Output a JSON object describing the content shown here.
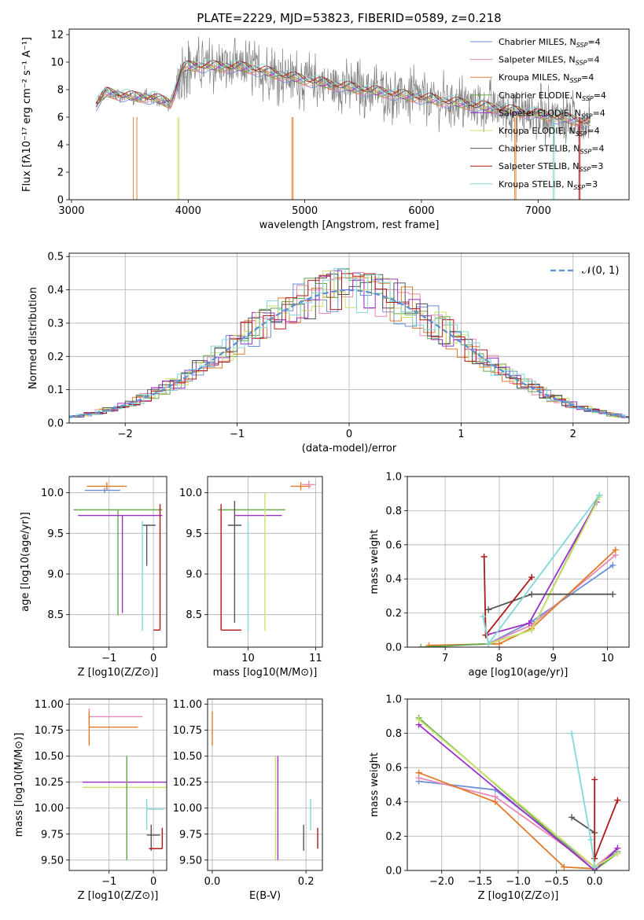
{
  "chart_data": [
    {
      "id": "spectrum",
      "type": "line",
      "title": "PLATE=2229, MJD=53823, FIBERID=0589, z=0.218",
      "xlabel": "wavelength [Angstrom, rest frame]",
      "ylabel": "Flux [fλ10⁻¹⁷ erg cm⁻² s⁻¹ A⁻¹]",
      "xlim": [
        2980,
        7780
      ],
      "ylim": [
        0,
        12.4
      ],
      "xticks": [
        3000,
        4000,
        5000,
        6000,
        7000
      ],
      "yticks": [
        0,
        2,
        4,
        6,
        8,
        10,
        12
      ],
      "grid": false,
      "legend_position": "top-right",
      "continuum": {
        "x": [
          3210,
          3300,
          3500,
          3700,
          3850,
          3950,
          4000,
          4200,
          4500,
          5000,
          5500,
          6000,
          6500,
          7000,
          7300,
          7450
        ],
        "y": [
          6.9,
          7.8,
          7.5,
          7.4,
          7.0,
          9.5,
          9.7,
          9.7,
          9.6,
          8.7,
          8.0,
          7.4,
          6.8,
          6.2,
          5.8,
          5.6
        ]
      },
      "series": [
        {
          "name": "Chabrier MILES, N",
          "sub": "SSP",
          "suffix": "=4",
          "color": "#6b8fd6"
        },
        {
          "name": "Salpeter MILES, N",
          "sub": "SSP",
          "suffix": "=4",
          "color": "#e68ab8"
        },
        {
          "name": "Kroupa MILES, N",
          "sub": "SSP",
          "suffix": "=4",
          "color": "#e07b2a"
        },
        {
          "name": "Chabrier ELODIE, N",
          "sub": "SSP",
          "suffix": "=4",
          "color": "#6aa84f"
        },
        {
          "name": "Salpeter ELODIE, N",
          "sub": "SSP",
          "suffix": "=4",
          "color": "#9b30c8"
        },
        {
          "name": "Kroupa ELODIE, N",
          "sub": "SSP",
          "suffix": "=4",
          "color": "#c8e26a"
        },
        {
          "name": "Chabrier STELIB, N",
          "sub": "SSP",
          "suffix": "=4",
          "color": "#555555"
        },
        {
          "name": "Salpeter STELIB, N",
          "sub": "SSP",
          "suffix": "=3",
          "color": "#b01818"
        },
        {
          "name": "Kroupa STELIB, N",
          "sub": "SSP",
          "suffix": "=3",
          "color": "#80d8d8"
        }
      ]
    },
    {
      "id": "residuals",
      "type": "line",
      "xlabel": "(data-model)/error",
      "ylabel": "Normed distribution",
      "xlim": [
        -2.5,
        2.5
      ],
      "ylim": [
        0,
        0.51
      ],
      "xticks": [
        -2,
        -1,
        0,
        1,
        2
      ],
      "yticks": [
        0.0,
        0.1,
        0.2,
        0.3,
        0.4,
        0.5
      ],
      "grid": true,
      "legend_position": "top-right",
      "legend_label": "𝒩(0, 1)",
      "bin_width": 0.1,
      "gaussian": {
        "mean": 0,
        "sigma": 1,
        "color": "#5b8fd6"
      }
    },
    {
      "id": "age-vs-Z",
      "type": "scatter",
      "xlabel": "Z [log10(Z/Z⊙)]",
      "ylabel": "age  [log10(age/yr)]",
      "xlim": [
        -1.9,
        0.3
      ],
      "ylim": [
        8.1,
        10.2
      ],
      "xticks": [
        -1,
        0
      ],
      "yticks": [
        8.5,
        9.0,
        9.5,
        10.0
      ],
      "grid": true,
      "points": [
        {
          "x": -1.05,
          "y": 10.08,
          "xerr": [
            0.45,
            0.45
          ],
          "yerr": [
            0.05,
            0.05
          ],
          "color": "#e07b2a"
        },
        {
          "x": -1.1,
          "y": 10.03,
          "xerr": [
            0.45,
            0.35
          ],
          "yerr": [
            0.03,
            0.03
          ],
          "color": "#6b8fd6"
        },
        {
          "x": -0.8,
          "y": 9.79,
          "xerr": [
            1.0,
            1.0
          ],
          "yerr": [
            1.3,
            0
          ],
          "color": "#6aa84f"
        },
        {
          "x": -0.7,
          "y": 9.72,
          "xerr": [
            1.0,
            0.9
          ],
          "yerr": [
            1.2,
            0
          ],
          "color": "#9b30c8"
        },
        {
          "x": -0.15,
          "y": 9.6,
          "xerr": [
            0.1,
            0.2
          ],
          "yerr": [
            0.5,
            0
          ],
          "color": "#555555"
        },
        {
          "x": 0.15,
          "y": 8.31,
          "xerr": [
            0.15,
            0.0
          ],
          "yerr": [
            0,
            1.55
          ],
          "color": "#b01818"
        },
        {
          "x": -0.25,
          "y": 9.65,
          "xerr": [
            0,
            0
          ],
          "yerr": [
            1.35,
            0
          ],
          "color": "#80d8d8"
        }
      ]
    },
    {
      "id": "age-vs-mass",
      "type": "scatter",
      "xlabel": "mass [log10(M/M⊙)]",
      "ylabel": "",
      "xlim": [
        9.4,
        11.1
      ],
      "ylim": [
        8.1,
        10.2
      ],
      "xticks": [
        10,
        11
      ],
      "yticks": [
        8.5,
        9.0,
        9.5,
        10.0
      ],
      "grid": true,
      "points": [
        {
          "x": 10.78,
          "y": 10.08,
          "xerr": [
            0.15,
            0.15
          ],
          "yerr": [
            0.05,
            0.05
          ],
          "color": "#e07b2a"
        },
        {
          "x": 10.9,
          "y": 10.1,
          "xerr": [
            0.1,
            0.1
          ],
          "yerr": [
            0.05,
            0.05
          ],
          "color": "#e68ab8"
        },
        {
          "x": 10.0,
          "y": 9.79,
          "xerr": [
            0.45,
            0.55
          ],
          "yerr": [
            0,
            0
          ],
          "color": "#6aa84f"
        },
        {
          "x": 10.1,
          "y": 9.72,
          "xerr": [
            0.3,
            0.4
          ],
          "yerr": [
            0,
            0
          ],
          "color": "#9b30c8"
        },
        {
          "x": 9.8,
          "y": 9.6,
          "xerr": [
            0.1,
            0.1
          ],
          "yerr": [
            1.2,
            0.3
          ],
          "color": "#555555"
        },
        {
          "x": 9.6,
          "y": 8.31,
          "xerr": [
            0,
            0.3
          ],
          "yerr": [
            0,
            1.55
          ],
          "color": "#b01818"
        },
        {
          "x": 10.0,
          "y": 9.65,
          "xerr": [
            0,
            0
          ],
          "yerr": [
            1.35,
            0
          ],
          "color": "#80d8d8"
        },
        {
          "x": 10.25,
          "y": 9.6,
          "xerr": [
            0,
            0
          ],
          "yerr": [
            1.3,
            0.4
          ],
          "color": "#c8e26a"
        }
      ]
    },
    {
      "id": "weight-vs-age",
      "type": "line",
      "xlabel": "age  [log10(age/yr)]",
      "ylabel": "mass weight",
      "xlim": [
        6.3,
        10.4
      ],
      "ylim": [
        0,
        1.0
      ],
      "xticks": [
        7,
        8,
        9,
        10
      ],
      "yticks": [
        0.0,
        0.2,
        0.4,
        0.6,
        0.8,
        1.0
      ],
      "grid": true,
      "series": [
        {
          "color": "#6b8fd6",
          "x": [
            7.8,
            8.6,
            10.1
          ],
          "y": [
            0.02,
            0.15,
            0.48
          ]
        },
        {
          "color": "#e68ab8",
          "x": [
            7.8,
            8.6,
            10.15
          ],
          "y": [
            0.02,
            0.13,
            0.54
          ]
        },
        {
          "color": "#e07b2a",
          "x": [
            6.7,
            8.0,
            8.6,
            10.15
          ],
          "y": [
            0.01,
            0.02,
            0.11,
            0.57
          ]
        },
        {
          "color": "#6aa84f",
          "x": [
            6.55,
            7.8,
            8.6,
            9.85
          ],
          "y": [
            0.0,
            0.02,
            0.1,
            0.89
          ]
        },
        {
          "color": "#9b30c8",
          "x": [
            7.75,
            8.55,
            9.8
          ],
          "y": [
            0.07,
            0.14,
            0.85
          ]
        },
        {
          "color": "#c8e26a",
          "x": [
            7.8,
            8.6,
            9.85
          ],
          "y": [
            0.02,
            0.1,
            0.88
          ]
        },
        {
          "color": "#555555",
          "x": [
            7.8,
            8.6,
            10.1
          ],
          "y": [
            0.22,
            0.31,
            0.31
          ]
        },
        {
          "color": "#b01818",
          "x": [
            7.72,
            7.75,
            8.6
          ],
          "y": [
            0.53,
            0.07,
            0.41
          ]
        },
        {
          "color": "#80d8d8",
          "x": [
            7.7,
            7.8,
            9.85
          ],
          "y": [
            0.18,
            0.02,
            0.89
          ]
        }
      ]
    },
    {
      "id": "mass-vs-Z",
      "type": "scatter",
      "xlabel": "Z [log10(Z/Z⊙)]",
      "ylabel": "mass [log10(M/M⊙)]",
      "xlim": [
        -1.9,
        0.3
      ],
      "ylim": [
        9.4,
        11.05
      ],
      "xticks": [
        -1,
        0
      ],
      "yticks": [
        9.5,
        9.75,
        10.0,
        10.25,
        10.5,
        10.75,
        11.0
      ],
      "grid": true,
      "points": [
        {
          "x": -1.45,
          "y": 10.88,
          "xerr": [
            0,
            1.2
          ],
          "yerr": [
            0.08,
            0.08
          ],
          "color": "#e68ab8"
        },
        {
          "x": -1.45,
          "y": 10.78,
          "xerr": [
            0,
            1.1
          ],
          "yerr": [
            0.18,
            0.15
          ],
          "color": "#e07b2a"
        },
        {
          "x": -0.6,
          "y": 10.25,
          "xerr": [
            1.0,
            1.0
          ],
          "yerr": [
            0.75,
            0.25
          ],
          "color": "#9b30c8"
        },
        {
          "x": -0.6,
          "y": 10.2,
          "xerr": [
            1.0,
            1.0
          ],
          "yerr": [
            0.7,
            0.3
          ],
          "color": "#c8e26a"
        },
        {
          "x": -0.6,
          "y": 10.2,
          "xerr": [
            0,
            0
          ],
          "yerr": [
            0.7,
            0.3
          ],
          "color": "#6aa84f"
        },
        {
          "x": -0.15,
          "y": 9.99,
          "xerr": [
            0,
            0.4
          ],
          "yerr": [
            0.2,
            0.1
          ],
          "color": "#80d8d8"
        },
        {
          "x": -0.05,
          "y": 9.74,
          "xerr": [
            0.1,
            0.2
          ],
          "yerr": [
            0.15,
            0.1
          ],
          "color": "#555555"
        },
        {
          "x": 0.2,
          "y": 9.61,
          "xerr": [
            0.3,
            0
          ],
          "yerr": [
            0,
            0.2
          ],
          "color": "#b01818"
        }
      ]
    },
    {
      "id": "mass-vs-EBV",
      "type": "scatter",
      "xlabel": "E(B-V)",
      "ylabel": "",
      "xlim": [
        -0.01,
        0.235
      ],
      "ylim": [
        9.4,
        11.05
      ],
      "xticks": [
        0.0,
        0.2
      ],
      "yticks": [
        9.5,
        9.75,
        10.0,
        10.25,
        10.5,
        10.75,
        11.0
      ],
      "grid": true,
      "points": [
        {
          "x": 0.0,
          "y": 10.78,
          "xerr": [
            0,
            0
          ],
          "yerr": [
            0.18,
            0.15
          ],
          "color": "#e07b2a"
        },
        {
          "x": 0.135,
          "y": 10.2,
          "xerr": [
            0,
            0
          ],
          "yerr": [
            0.7,
            0.3
          ],
          "color": "#c8e26a"
        },
        {
          "x": 0.14,
          "y": 10.25,
          "xerr": [
            0,
            0
          ],
          "yerr": [
            0.75,
            0.25
          ],
          "color": "#9b30c8"
        },
        {
          "x": 0.195,
          "y": 9.74,
          "xerr": [
            0,
            0
          ],
          "yerr": [
            0.15,
            0.1
          ],
          "color": "#555555"
        },
        {
          "x": 0.21,
          "y": 9.99,
          "xerr": [
            0,
            0
          ],
          "yerr": [
            0.2,
            0.1
          ],
          "color": "#80d8d8"
        },
        {
          "x": 0.225,
          "y": 9.61,
          "xerr": [
            0,
            0
          ],
          "yerr": [
            0,
            0.2
          ],
          "color": "#b01818"
        }
      ]
    },
    {
      "id": "weight-vs-Z",
      "type": "line",
      "xlabel": "Z [log10(Z/Z⊙)]",
      "ylabel": "mass weight",
      "xlim": [
        -2.45,
        0.45
      ],
      "ylim": [
        0,
        1.0
      ],
      "xticks": [
        -2.0,
        -1.5,
        -1.0,
        -0.5,
        0.0
      ],
      "yticks": [
        0.0,
        0.2,
        0.4,
        0.6,
        0.8,
        1.0
      ],
      "grid": true,
      "series": [
        {
          "color": "#6b8fd6",
          "x": [
            -2.3,
            -1.3,
            0.0,
            0.3
          ],
          "y": [
            0.52,
            0.47,
            0.02,
            0.11
          ]
        },
        {
          "color": "#e68ab8",
          "x": [
            -2.3,
            -1.3,
            0.0,
            0.3
          ],
          "y": [
            0.54,
            0.43,
            0.02,
            0.13
          ]
        },
        {
          "color": "#e07b2a",
          "x": [
            -2.3,
            -1.3,
            -0.4,
            0.0
          ],
          "y": [
            0.57,
            0.4,
            0.02,
            0.01
          ]
        },
        {
          "color": "#6aa84f",
          "x": [
            -2.3,
            0.0,
            0.3
          ],
          "y": [
            0.89,
            0.0,
            0.1
          ]
        },
        {
          "color": "#9b30c8",
          "x": [
            -2.3,
            0.0,
            0.3
          ],
          "y": [
            0.85,
            0.0,
            0.13
          ]
        },
        {
          "color": "#c8e26a",
          "x": [
            -2.3,
            0.0,
            0.3
          ],
          "y": [
            0.88,
            0.02,
            0.1
          ]
        },
        {
          "color": "#555555",
          "x": [
            -0.3,
            0.0
          ],
          "y": [
            0.31,
            0.22
          ]
        },
        {
          "color": "#b01818",
          "x": [
            0.0,
            0.0,
            0.3
          ],
          "y": [
            0.53,
            0.07,
            0.41
          ]
        },
        {
          "color": "#80d8d8",
          "x": [
            -0.3,
            -0.05,
            0.0
          ],
          "y": [
            0.8,
            0.18,
            0.02
          ]
        }
      ]
    }
  ]
}
